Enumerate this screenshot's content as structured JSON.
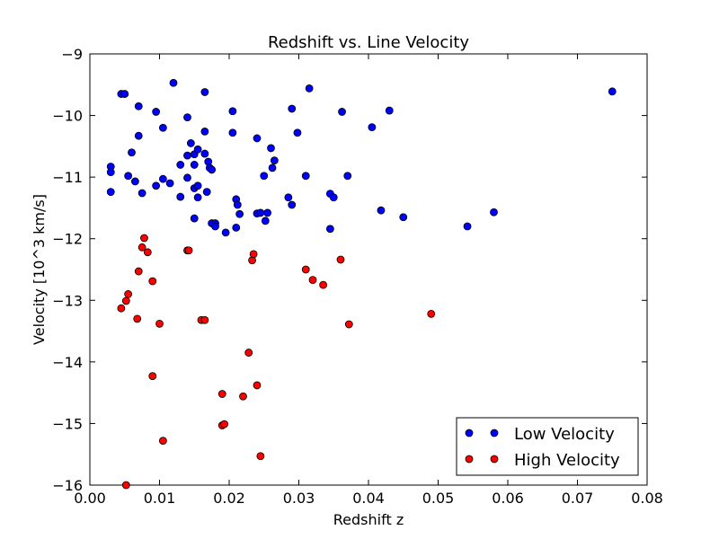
{
  "chart_data": {
    "type": "scatter",
    "title": "Redshift vs. Line Velocity",
    "xlabel": "Redshift z",
    "ylabel": "Velocity [10^3 km/s]",
    "xlim": [
      0.0,
      0.08
    ],
    "ylim": [
      -16,
      -9
    ],
    "xticks": [
      0.0,
      0.01,
      0.02,
      0.03,
      0.04,
      0.05,
      0.06,
      0.07,
      0.08
    ],
    "xtick_labels": [
      "0.00",
      "0.01",
      "0.02",
      "0.03",
      "0.04",
      "0.05",
      "0.06",
      "0.07",
      "0.08"
    ],
    "yticks": [
      -16,
      -15,
      -14,
      -13,
      -12,
      -11,
      -10,
      -9
    ],
    "ytick_labels": [
      "−16",
      "−15",
      "−14",
      "−13",
      "−12",
      "−11",
      "−10",
      "−9"
    ],
    "grid": false,
    "legend_position": "bottom-right",
    "series": [
      {
        "name": "Low Velocity",
        "color": "#0000ff",
        "points": [
          [
            0.003,
            -10.83
          ],
          [
            0.003,
            -10.92
          ],
          [
            0.003,
            -11.24
          ],
          [
            0.0045,
            -9.65
          ],
          [
            0.005,
            -9.65
          ],
          [
            0.0055,
            -10.98
          ],
          [
            0.006,
            -10.6
          ],
          [
            0.0065,
            -11.07
          ],
          [
            0.007,
            -9.85
          ],
          [
            0.007,
            -10.33
          ],
          [
            0.0075,
            -11.26
          ],
          [
            0.0095,
            -9.94
          ],
          [
            0.0095,
            -11.14
          ],
          [
            0.0105,
            -10.2
          ],
          [
            0.0105,
            -11.03
          ],
          [
            0.0115,
            -11.1
          ],
          [
            0.012,
            -9.47
          ],
          [
            0.013,
            -10.8
          ],
          [
            0.013,
            -11.32
          ],
          [
            0.014,
            -10.03
          ],
          [
            0.014,
            -10.65
          ],
          [
            0.014,
            -11.01
          ],
          [
            0.0145,
            -10.45
          ],
          [
            0.015,
            -10.63
          ],
          [
            0.015,
            -10.8
          ],
          [
            0.015,
            -11.18
          ],
          [
            0.015,
            -11.67
          ],
          [
            0.0155,
            -10.55
          ],
          [
            0.0155,
            -11.14
          ],
          [
            0.0155,
            -11.33
          ],
          [
            0.0165,
            -9.62
          ],
          [
            0.0165,
            -10.26
          ],
          [
            0.0165,
            -10.62
          ],
          [
            0.0168,
            -11.24
          ],
          [
            0.017,
            -10.75
          ],
          [
            0.0172,
            -10.85
          ],
          [
            0.0175,
            -10.88
          ],
          [
            0.0175,
            -11.75
          ],
          [
            0.018,
            -11.75
          ],
          [
            0.018,
            -11.8
          ],
          [
            0.0195,
            -11.9
          ],
          [
            0.0205,
            -9.93
          ],
          [
            0.0205,
            -10.28
          ],
          [
            0.021,
            -11.36
          ],
          [
            0.021,
            -11.82
          ],
          [
            0.0212,
            -11.45
          ],
          [
            0.0215,
            -11.6
          ],
          [
            0.024,
            -10.37
          ],
          [
            0.024,
            -11.59
          ],
          [
            0.0245,
            -11.58
          ],
          [
            0.025,
            -10.98
          ],
          [
            0.0252,
            -11.71
          ],
          [
            0.0255,
            -11.58
          ],
          [
            0.026,
            -10.53
          ],
          [
            0.0262,
            -10.85
          ],
          [
            0.0265,
            -10.73
          ],
          [
            0.0285,
            -11.33
          ],
          [
            0.029,
            -9.89
          ],
          [
            0.029,
            -11.45
          ],
          [
            0.0298,
            -10.28
          ],
          [
            0.031,
            -10.98
          ],
          [
            0.0315,
            -9.56
          ],
          [
            0.0345,
            -11.27
          ],
          [
            0.0345,
            -11.84
          ],
          [
            0.035,
            -11.33
          ],
          [
            0.0362,
            -9.94
          ],
          [
            0.037,
            -10.98
          ],
          [
            0.0405,
            -10.19
          ],
          [
            0.0418,
            -11.54
          ],
          [
            0.043,
            -9.92
          ],
          [
            0.045,
            -11.65
          ],
          [
            0.0542,
            -11.8
          ],
          [
            0.058,
            -11.57
          ],
          [
            0.075,
            -9.61
          ]
        ]
      },
      {
        "name": "High Velocity",
        "color": "#ff0000",
        "points": [
          [
            0.0045,
            -13.13
          ],
          [
            0.0052,
            -13.01
          ],
          [
            0.0055,
            -12.9
          ],
          [
            0.0052,
            -16.0
          ],
          [
            0.0068,
            -13.3
          ],
          [
            0.007,
            -12.53
          ],
          [
            0.0075,
            -12.14
          ],
          [
            0.0078,
            -11.99
          ],
          [
            0.0083,
            -12.22
          ],
          [
            0.009,
            -12.69
          ],
          [
            0.009,
            -14.23
          ],
          [
            0.01,
            -13.38
          ],
          [
            0.0105,
            -15.28
          ],
          [
            0.014,
            -12.19
          ],
          [
            0.0142,
            -12.19
          ],
          [
            0.016,
            -13.32
          ],
          [
            0.0165,
            -13.32
          ],
          [
            0.019,
            -14.52
          ],
          [
            0.019,
            -15.03
          ],
          [
            0.0193,
            -15.01
          ],
          [
            0.022,
            -14.56
          ],
          [
            0.0228,
            -13.85
          ],
          [
            0.0233,
            -12.35
          ],
          [
            0.0235,
            -12.25
          ],
          [
            0.024,
            -14.38
          ],
          [
            0.0245,
            -15.53
          ],
          [
            0.031,
            -12.5
          ],
          [
            0.032,
            -12.67
          ],
          [
            0.0335,
            -12.75
          ],
          [
            0.036,
            -12.34
          ],
          [
            0.0372,
            -13.39
          ],
          [
            0.049,
            -13.22
          ]
        ]
      }
    ]
  }
}
